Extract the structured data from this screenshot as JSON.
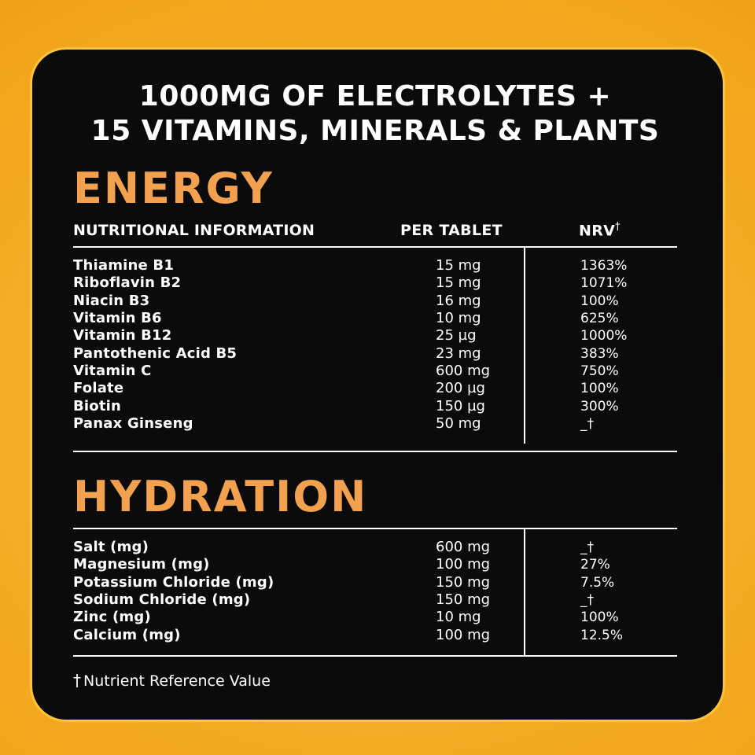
{
  "title": {
    "line1": "1000MG OF ELECTROLYTES +",
    "line2": "15 VITAMINS, MINERALS & PLANTS"
  },
  "table": {
    "columns": {
      "name": "NUTRITIONAL INFORMATION",
      "per_tablet": "PER TABLET",
      "nrv": "NRV",
      "nrv_mark": "†"
    }
  },
  "sections": [
    {
      "heading": "ENERGY",
      "rows": [
        {
          "name": "Thiamine B1",
          "amount": "15 mg",
          "nrv": "1363%"
        },
        {
          "name": "Riboflavin B2",
          "amount": "15 mg",
          "nrv": "1071%"
        },
        {
          "name": "Niacin B3",
          "amount": "16 mg",
          "nrv": "100%"
        },
        {
          "name": "Vitamin B6",
          "amount": "10 mg",
          "nrv": "625%"
        },
        {
          "name": "Vitamin B12",
          "amount": "25 µg",
          "nrv": "1000%"
        },
        {
          "name": "Pantothenic Acid B5",
          "amount": "23 mg",
          "nrv": "383%"
        },
        {
          "name": "Vitamin C",
          "amount": "600 mg",
          "nrv": "750%"
        },
        {
          "name": "Folate",
          "amount": "200 µg",
          "nrv": "100%"
        },
        {
          "name": "Biotin",
          "amount": "150 µg",
          "nrv": "300%"
        },
        {
          "name": "Panax Ginseng",
          "amount": "50 mg",
          "nrv": "_†"
        }
      ]
    },
    {
      "heading": "HYDRATION",
      "rows": [
        {
          "name": "Salt (mg)",
          "amount": "600 mg",
          "nrv": "_†"
        },
        {
          "name": "Magnesium (mg)",
          "amount": "100 mg",
          "nrv": "27%"
        },
        {
          "name": "Potassium Chloride (mg)",
          "amount": "150 mg",
          "nrv": "7.5%"
        },
        {
          "name": "Sodium Chloride (mg)",
          "amount": "150 mg",
          "nrv": "_†"
        },
        {
          "name": "Zinc (mg)",
          "amount": "10 mg",
          "nrv": "100%"
        },
        {
          "name": "Calcium (mg)",
          "amount": "100 mg",
          "nrv": "12.5%"
        }
      ]
    }
  ],
  "footnote": {
    "mark": "†",
    "text": "Nutrient Reference Value"
  },
  "colors": {
    "accent_orange": "#F2A14F",
    "background": "#F2A81F",
    "gold_border": "#FFC43D",
    "panel": "#0B0B0B",
    "text": "#FFFFFF"
  }
}
